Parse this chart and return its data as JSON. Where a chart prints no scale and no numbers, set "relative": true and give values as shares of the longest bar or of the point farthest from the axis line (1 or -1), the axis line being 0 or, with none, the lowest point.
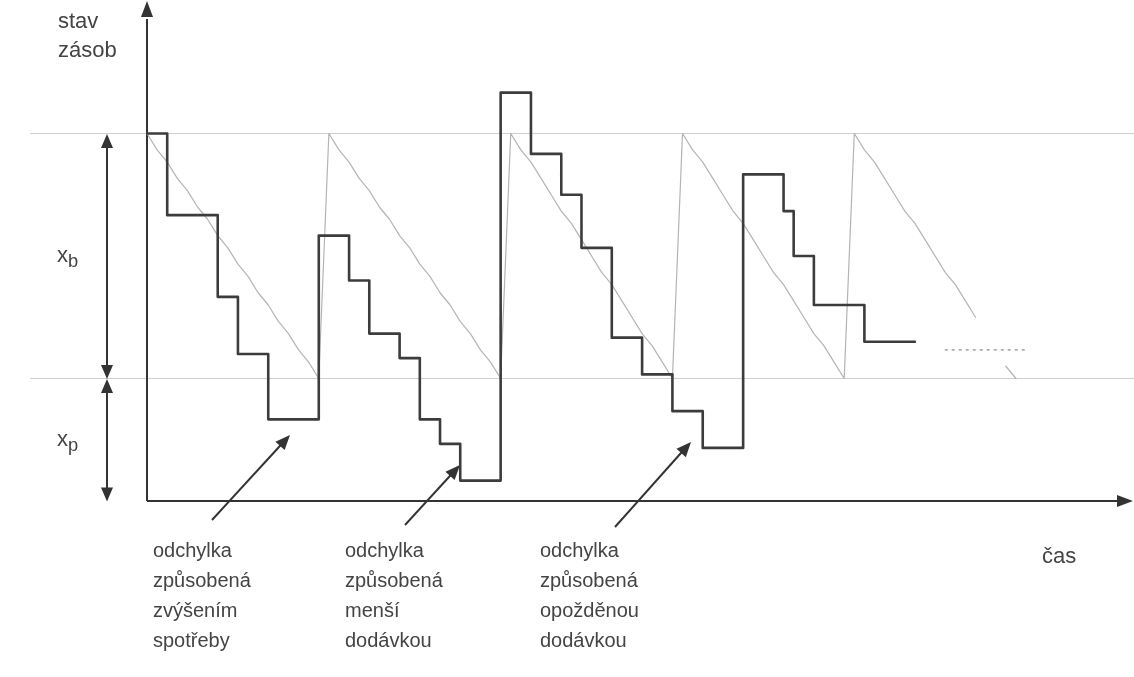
{
  "chart_data": {
    "type": "step",
    "relative": true,
    "ylabel": "stav zásob",
    "xlabel": "čas",
    "legend": false,
    "categories": [
      null,
      null,
      null,
      null,
      null,
      null,
      null,
      null,
      null,
      null,
      null,
      null,
      null,
      null,
      null,
      null,
      null,
      null,
      null,
      null,
      null,
      null,
      null,
      null,
      null,
      null,
      null,
      null,
      null,
      null,
      null,
      null,
      null,
      null,
      null,
      null,
      null,
      null,
      null,
      null,
      null,
      null,
      null,
      null,
      null,
      null,
      null,
      null,
      null,
      null,
      null,
      null,
      null,
      null,
      null,
      null,
      null,
      null,
      null,
      null,
      null,
      null,
      null,
      null,
      null,
      null,
      null,
      null,
      null,
      null,
      null,
      null,
      null,
      null,
      null,
      null,
      null,
      null,
      null,
      null,
      null,
      null,
      null,
      null,
      null,
      null,
      null,
      null,
      null,
      null,
      null,
      null,
      null,
      null,
      null,
      null,
      null
    ],
    "series": [
      {
        "color": "#3c3c3c",
        "values": [
          0.9,
          0.9,
          0.9,
          0.7,
          0.7,
          0.7,
          0.7,
          0.7,
          0.5,
          0.5,
          0.36,
          0.36,
          0.36,
          0.2,
          0.2,
          0.2,
          0.2,
          0.2,
          0.65,
          0.65,
          0.65,
          0.54,
          0.54,
          0.41,
          0.41,
          0.41,
          0.35,
          0.35,
          0.2,
          0.2,
          0.14,
          0.14,
          0.05,
          0.05,
          0.05,
          0.05,
          1.0,
          1.0,
          1.0,
          0.85,
          0.85,
          0.85,
          0.75,
          0.75,
          0.62,
          0.62,
          0.62,
          0.4,
          0.4,
          0.4,
          0.31,
          0.31,
          0.31,
          0.22,
          0.22,
          0.22,
          0.13,
          0.13,
          0.13,
          0.13,
          0.8,
          0.8,
          0.8,
          0.8,
          0.71,
          0.6,
          0.6,
          0.48,
          0.48,
          0.48,
          0.48,
          0.48,
          0.39,
          0.39,
          0.39,
          0.39,
          0.39,
          null,
          null,
          null,
          null,
          null,
          null,
          null,
          null,
          null,
          null,
          null,
          null,
          null,
          null,
          null,
          null,
          null,
          null,
          null,
          null
        ]
      },
      {
        "type": "line",
        "color": "#b4b4b4",
        "values": [
          0.9,
          0.86,
          0.83,
          0.79,
          0.76,
          0.72,
          0.69,
          0.65,
          0.62,
          0.58,
          0.55,
          0.51,
          0.48,
          0.44,
          0.41,
          0.37,
          0.34,
          0.3,
          0.9,
          0.86,
          0.83,
          0.79,
          0.76,
          0.72,
          0.69,
          0.65,
          0.62,
          0.58,
          0.55,
          0.51,
          0.48,
          0.44,
          0.41,
          0.37,
          0.34,
          0.3,
          0.9,
          0.86,
          0.83,
          0.79,
          0.75,
          0.71,
          0.68,
          0.64,
          0.6,
          0.56,
          0.53,
          0.49,
          0.45,
          0.41,
          0.38,
          0.34,
          0.3,
          0.9,
          0.86,
          0.83,
          0.79,
          0.75,
          0.71,
          0.68,
          0.64,
          0.6,
          0.56,
          0.53,
          0.49,
          0.45,
          0.41,
          0.38,
          0.34,
          0.3,
          0.9,
          0.86,
          0.83,
          0.79,
          0.75,
          0.71,
          0.68,
          0.64,
          0.6,
          0.56,
          0.53,
          0.49,
          0.45,
          null,
          null,
          0.33,
          0.3,
          null,
          null,
          null,
          null,
          null,
          null,
          null,
          null,
          null,
          null
        ]
      },
      {
        "type": "line",
        "line_style": "dotted",
        "color": "#8c8c8c",
        "values": [
          null,
          null,
          null,
          null,
          null,
          null,
          null,
          null,
          null,
          null,
          null,
          null,
          null,
          null,
          null,
          null,
          null,
          null,
          null,
          null,
          null,
          null,
          null,
          null,
          null,
          null,
          null,
          null,
          null,
          null,
          null,
          null,
          null,
          null,
          null,
          null,
          null,
          null,
          null,
          null,
          null,
          null,
          null,
          null,
          null,
          null,
          null,
          null,
          null,
          null,
          null,
          null,
          null,
          null,
          null,
          null,
          null,
          null,
          null,
          null,
          null,
          null,
          null,
          null,
          null,
          null,
          null,
          null,
          null,
          null,
          null,
          null,
          null,
          null,
          null,
          null,
          null,
          null,
          null,
          0.37,
          0.37,
          0.37,
          0.37,
          0.37,
          0.37,
          0.37,
          0.37,
          0.37,
          null,
          null,
          null,
          null,
          null,
          null,
          null,
          null,
          null
        ]
      }
    ],
    "ref_lines": [
      {
        "axis": "y",
        "value": 0.9,
        "color": "#cfcfcf"
      },
      {
        "axis": "y",
        "value": 0.3,
        "color": "#cfcfcf"
      }
    ],
    "annotations": [
      "x$_{b}$",
      "x$_{p}$",
      "odchylka\nzpůsobená\nzvýšením\nspotřeby",
      "odchylka\nzpůsobená\nmenší\ndodávkou",
      "odchylka\nzpůsobená\nopožděnou\ndodávkou"
    ]
  }
}
